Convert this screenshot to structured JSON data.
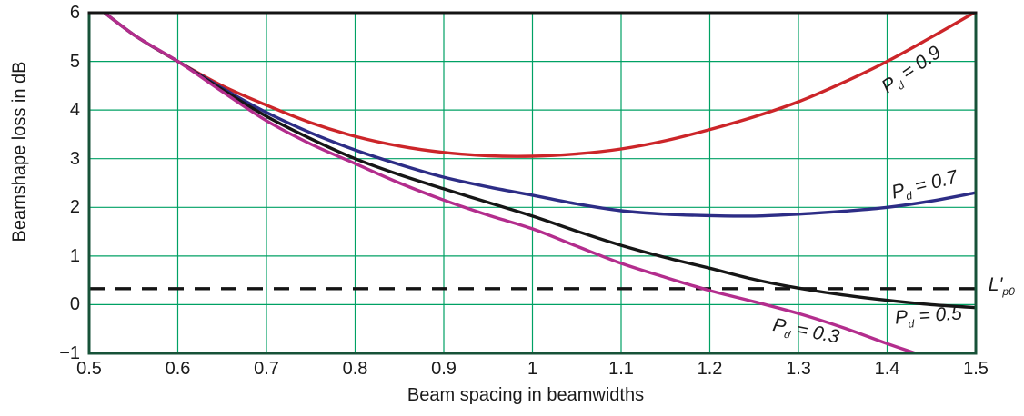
{
  "chart_data": {
    "type": "line",
    "title": "",
    "xlabel": "Beam spacing in beamwidths",
    "ylabel": "Beamshape loss in dB",
    "xlim": [
      0.5,
      1.5
    ],
    "ylim": [
      -1,
      6
    ],
    "grid": true,
    "legend_position": "inline-labels",
    "x_tick_values": [
      0.5,
      0.6,
      0.7,
      0.8,
      0.9,
      1.0,
      1.1,
      1.2,
      1.3,
      1.4,
      1.5
    ],
    "x_tick_labels": [
      "0.5",
      "0.6",
      "0.7",
      "0.8",
      "0.9",
      "1",
      "1.1",
      "1.2",
      "1.3",
      "1.4",
      "1.5"
    ],
    "y_tick_values": [
      6,
      5,
      4,
      3,
      2,
      1,
      0,
      -1
    ],
    "y_tick_labels": [
      "6",
      "5",
      "4",
      "3",
      "2",
      "1",
      "0",
      "−1"
    ],
    "colors": {
      "grid": "#00a164",
      "frame": "#175238",
      "frame_top": "#141414",
      "text": "#1a1a1a"
    },
    "x": [
      0.5,
      0.55,
      0.6,
      0.65,
      0.7,
      0.75,
      0.8,
      0.85,
      0.9,
      0.95,
      1.0,
      1.05,
      1.1,
      1.15,
      1.2,
      1.25,
      1.3,
      1.35,
      1.4,
      1.45,
      1.5
    ],
    "series": [
      {
        "id": "pd-0.9",
        "name": "Pd = 0.9",
        "color": "#cc2529",
        "values": [
          6.25,
          5.55,
          5.0,
          4.5,
          4.1,
          3.74,
          3.46,
          3.26,
          3.13,
          3.06,
          3.05,
          3.1,
          3.2,
          3.37,
          3.6,
          3.86,
          4.17,
          4.56,
          5.0,
          5.5,
          6.02
        ],
        "label": {
          "base": "P",
          "sub": "d",
          "rest": " = 0.9",
          "x": 1.428,
          "y": 4.8,
          "rot": -35
        }
      },
      {
        "id": "pd-0.7",
        "name": "Pd = 0.7",
        "color": "#2d2d86",
        "values": [
          6.25,
          5.55,
          5.0,
          4.45,
          3.95,
          3.53,
          3.18,
          2.88,
          2.62,
          2.42,
          2.25,
          2.07,
          1.93,
          1.86,
          1.83,
          1.82,
          1.86,
          1.92,
          2.0,
          2.13,
          2.3
        ],
        "label": {
          "base": "P",
          "sub": "d",
          "rest": " = 0.7",
          "x": 1.443,
          "y": 2.43,
          "rot": -14
        }
      },
      {
        "id": "pd-0.5",
        "name": "Pd = 0.5",
        "color": "#161616",
        "values": [
          6.25,
          5.55,
          5.0,
          4.42,
          3.87,
          3.41,
          3.0,
          2.67,
          2.38,
          2.1,
          1.82,
          1.51,
          1.22,
          0.97,
          0.75,
          0.52,
          0.34,
          0.2,
          0.09,
          0.0,
          -0.06
        ],
        "label": {
          "base": "P",
          "sub": "d",
          "rest": " = 0.5",
          "x": 1.447,
          "y": -0.25,
          "rot": -4
        }
      },
      {
        "id": "pd-0.3",
        "name": "Pd = 0.3",
        "color": "#b32d8d",
        "values": [
          6.25,
          5.55,
          5.0,
          4.38,
          3.78,
          3.3,
          2.9,
          2.5,
          2.15,
          1.84,
          1.56,
          1.2,
          0.85,
          0.56,
          0.29,
          0.06,
          -0.18,
          -0.47,
          -0.8,
          -1.12,
          -1.5
        ],
        "label": {
          "base": "P",
          "sub": "d",
          "rest": " = 0.3",
          "x": 1.308,
          "y": -0.57,
          "rot": 11
        }
      }
    ],
    "reference_line": {
      "y": 0.33,
      "color": "#141414",
      "dash": [
        17,
        12
      ],
      "label": {
        "base": "L′",
        "sub": "p0",
        "rest": "",
        "x": 1.529,
        "y": 0.38,
        "rot": 0
      }
    }
  }
}
